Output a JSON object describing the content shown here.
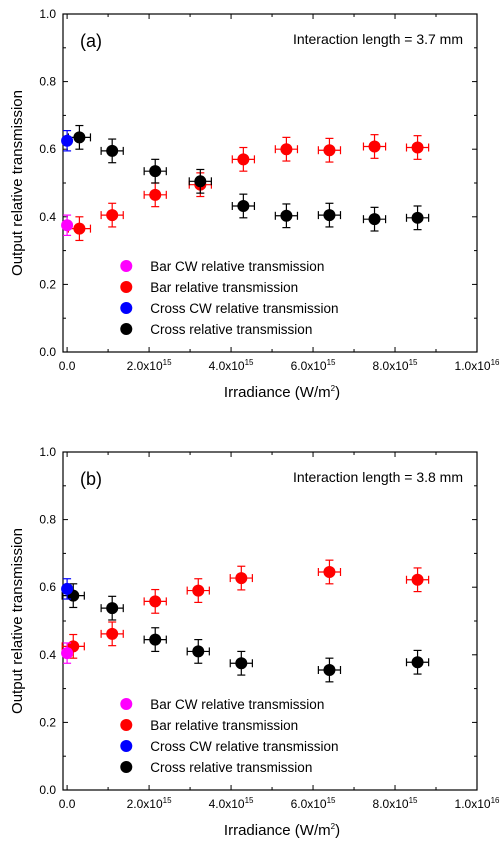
{
  "chart_data": [
    {
      "type": "scatter",
      "panel_label": "(a)",
      "annotation": "Interaction length = 3.7 mm",
      "xlabel_main": "Irradiance (W/m",
      "xlabel_sup": "2",
      "xlabel_end": ")",
      "ylabel": "Output relative transmission",
      "xlim": [
        -100000000000000.0,
        1e+16
      ],
      "ylim": [
        0,
        1
      ],
      "x_ticks": [
        {
          "value": 0,
          "mantissa": "0.0",
          "exp": ""
        },
        {
          "value": 2000000000000000.0,
          "mantissa": "2.0x10",
          "exp": "15"
        },
        {
          "value": 4000000000000000.0,
          "mantissa": "4.0x10",
          "exp": "15"
        },
        {
          "value": 6000000000000000.0,
          "mantissa": "6.0x10",
          "exp": "15"
        },
        {
          "value": 8000000000000000.0,
          "mantissa": "8.0x10",
          "exp": "15"
        },
        {
          "value": 1e+16,
          "mantissa": "1.0x10",
          "exp": "16"
        }
      ],
      "y_ticks": [
        {
          "value": 0,
          "label": "0.0"
        },
        {
          "value": 0.2,
          "label": "0.2"
        },
        {
          "value": 0.4,
          "label": "0.4"
        },
        {
          "value": 0.6,
          "label": "0.6"
        },
        {
          "value": 0.8,
          "label": "0.8"
        },
        {
          "value": 1.0,
          "label": "1.0"
        }
      ],
      "legend_position": "bottom-right",
      "series": [
        {
          "name": "Bar CW relative transmission",
          "color": "#ff00ff",
          "x": [
            0
          ],
          "y": [
            0.375
          ],
          "xerr": 0,
          "yerr": 0.03
        },
        {
          "name": "Bar relative transmission",
          "color": "#ff0000",
          "x": [
            300000000000000.0,
            1100000000000000.0,
            2150000000000000.0,
            3250000000000000.0,
            4300000000000000.0,
            5350000000000000.0,
            6400000000000000.0,
            7500000000000000.0,
            8550000000000000.0
          ],
          "y": [
            0.365,
            0.405,
            0.465,
            0.495,
            0.57,
            0.6,
            0.597,
            0.608,
            0.605
          ],
          "xerr": 270000000000000.0,
          "yerr": 0.035
        },
        {
          "name": "Cross CW relative transmission",
          "color": "#0000ff",
          "x": [
            0
          ],
          "y": [
            0.625
          ],
          "xerr": 0,
          "yerr": 0.03
        },
        {
          "name": "Cross relative transmission",
          "color": "#000000",
          "x": [
            300000000000000.0,
            1100000000000000.0,
            2150000000000000.0,
            3250000000000000.0,
            4300000000000000.0,
            5350000000000000.0,
            6400000000000000.0,
            7500000000000000.0,
            8550000000000000.0
          ],
          "y": [
            0.635,
            0.595,
            0.535,
            0.505,
            0.432,
            0.403,
            0.405,
            0.393,
            0.397
          ],
          "xerr": 270000000000000.0,
          "yerr": 0.035
        }
      ]
    },
    {
      "type": "scatter",
      "panel_label": "(b)",
      "annotation": "Interaction length = 3.8 mm",
      "xlabel_main": "Irradiance (W/m",
      "xlabel_sup": "2",
      "xlabel_end": ")",
      "ylabel": "Output relative transmission",
      "xlim": [
        -100000000000000.0,
        1e+16
      ],
      "ylim": [
        0,
        1
      ],
      "x_ticks": [
        {
          "value": 0,
          "mantissa": "0.0",
          "exp": ""
        },
        {
          "value": 2000000000000000.0,
          "mantissa": "2.0x10",
          "exp": "15"
        },
        {
          "value": 4000000000000000.0,
          "mantissa": "4.0x10",
          "exp": "15"
        },
        {
          "value": 6000000000000000.0,
          "mantissa": "6.0x10",
          "exp": "15"
        },
        {
          "value": 8000000000000000.0,
          "mantissa": "8.0x10",
          "exp": "15"
        },
        {
          "value": 1e+16,
          "mantissa": "1.0x10",
          "exp": "16"
        }
      ],
      "y_ticks": [
        {
          "value": 0,
          "label": "0.0"
        },
        {
          "value": 0.2,
          "label": "0.2"
        },
        {
          "value": 0.4,
          "label": "0.4"
        },
        {
          "value": 0.6,
          "label": "0.6"
        },
        {
          "value": 0.8,
          "label": "0.8"
        },
        {
          "value": 1.0,
          "label": "1.0"
        }
      ],
      "legend_position": "bottom-right",
      "series": [
        {
          "name": "Bar CW relative transmission",
          "color": "#ff00ff",
          "x": [
            0
          ],
          "y": [
            0.405
          ],
          "xerr": 0,
          "yerr": 0.03
        },
        {
          "name": "Bar relative transmission",
          "color": "#ff0000",
          "x": [
            150000000000000.0,
            1100000000000000.0,
            2150000000000000.0,
            3200000000000000.0,
            4250000000000000.0,
            6400000000000000.0,
            8550000000000000.0
          ],
          "y": [
            0.425,
            0.462,
            0.558,
            0.59,
            0.627,
            0.645,
            0.622
          ],
          "xerr": 270000000000000.0,
          "yerr": 0.035
        },
        {
          "name": "Cross CW relative transmission",
          "color": "#0000ff",
          "x": [
            0
          ],
          "y": [
            0.595
          ],
          "xerr": 0,
          "yerr": 0.03
        },
        {
          "name": "Cross relative transmission",
          "color": "#000000",
          "x": [
            150000000000000.0,
            1100000000000000.0,
            2150000000000000.0,
            3200000000000000.0,
            4250000000000000.0,
            6400000000000000.0,
            8550000000000000.0
          ],
          "y": [
            0.575,
            0.538,
            0.445,
            0.41,
            0.375,
            0.355,
            0.378
          ],
          "xerr": 270000000000000.0,
          "yerr": 0.035
        }
      ]
    }
  ]
}
